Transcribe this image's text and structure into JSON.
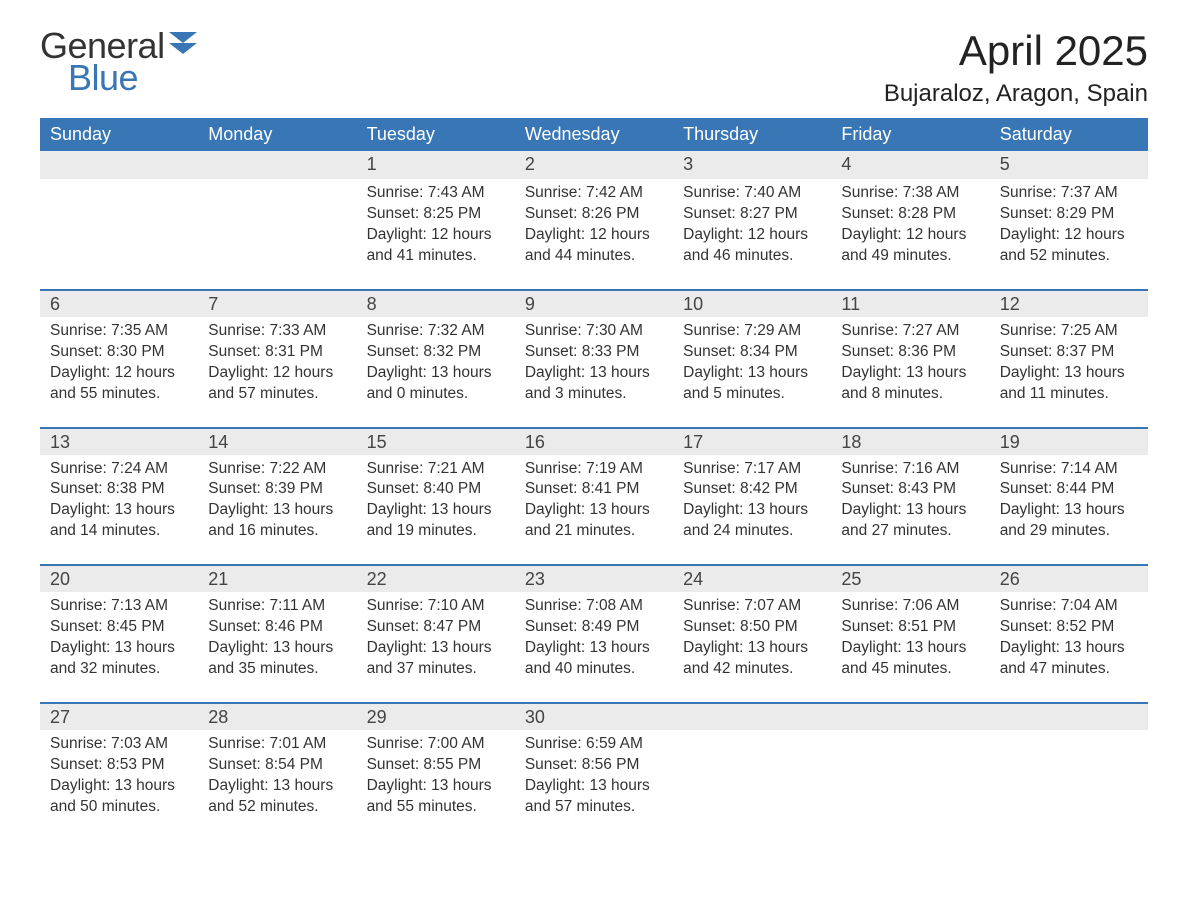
{
  "logo": {
    "text1": "General",
    "text2": "Blue",
    "color1": "#333333",
    "color2": "#3876b5"
  },
  "title": "April 2025",
  "location": "Bujaraloz, Aragon, Spain",
  "colors": {
    "header_bg": "#3876b5",
    "header_fg": "#ffffff",
    "daybar_bg": "#ebebeb",
    "daybar_border": "#3876b5",
    "body_bg": "#ffffff",
    "text": "#333333"
  },
  "typography": {
    "title_fontsize": 42,
    "location_fontsize": 24,
    "header_fontsize": 18,
    "daynum_fontsize": 18,
    "body_fontsize": 15.5
  },
  "weekdays": [
    "Sunday",
    "Monday",
    "Tuesday",
    "Wednesday",
    "Thursday",
    "Friday",
    "Saturday"
  ],
  "label_sunrise": "Sunrise",
  "label_sunset": "Sunset",
  "label_daylight": "Daylight",
  "weeks": [
    [
      {
        "empty": true
      },
      {
        "empty": true
      },
      {
        "day": 1,
        "sunrise": "7:43 AM",
        "sunset": "8:25 PM",
        "daylight": "12 hours and 41 minutes."
      },
      {
        "day": 2,
        "sunrise": "7:42 AM",
        "sunset": "8:26 PM",
        "daylight": "12 hours and 44 minutes."
      },
      {
        "day": 3,
        "sunrise": "7:40 AM",
        "sunset": "8:27 PM",
        "daylight": "12 hours and 46 minutes."
      },
      {
        "day": 4,
        "sunrise": "7:38 AM",
        "sunset": "8:28 PM",
        "daylight": "12 hours and 49 minutes."
      },
      {
        "day": 5,
        "sunrise": "7:37 AM",
        "sunset": "8:29 PM",
        "daylight": "12 hours and 52 minutes."
      }
    ],
    [
      {
        "day": 6,
        "sunrise": "7:35 AM",
        "sunset": "8:30 PM",
        "daylight": "12 hours and 55 minutes."
      },
      {
        "day": 7,
        "sunrise": "7:33 AM",
        "sunset": "8:31 PM",
        "daylight": "12 hours and 57 minutes."
      },
      {
        "day": 8,
        "sunrise": "7:32 AM",
        "sunset": "8:32 PM",
        "daylight": "13 hours and 0 minutes."
      },
      {
        "day": 9,
        "sunrise": "7:30 AM",
        "sunset": "8:33 PM",
        "daylight": "13 hours and 3 minutes."
      },
      {
        "day": 10,
        "sunrise": "7:29 AM",
        "sunset": "8:34 PM",
        "daylight": "13 hours and 5 minutes."
      },
      {
        "day": 11,
        "sunrise": "7:27 AM",
        "sunset": "8:36 PM",
        "daylight": "13 hours and 8 minutes."
      },
      {
        "day": 12,
        "sunrise": "7:25 AM",
        "sunset": "8:37 PM",
        "daylight": "13 hours and 11 minutes."
      }
    ],
    [
      {
        "day": 13,
        "sunrise": "7:24 AM",
        "sunset": "8:38 PM",
        "daylight": "13 hours and 14 minutes."
      },
      {
        "day": 14,
        "sunrise": "7:22 AM",
        "sunset": "8:39 PM",
        "daylight": "13 hours and 16 minutes."
      },
      {
        "day": 15,
        "sunrise": "7:21 AM",
        "sunset": "8:40 PM",
        "daylight": "13 hours and 19 minutes."
      },
      {
        "day": 16,
        "sunrise": "7:19 AM",
        "sunset": "8:41 PM",
        "daylight": "13 hours and 21 minutes."
      },
      {
        "day": 17,
        "sunrise": "7:17 AM",
        "sunset": "8:42 PM",
        "daylight": "13 hours and 24 minutes."
      },
      {
        "day": 18,
        "sunrise": "7:16 AM",
        "sunset": "8:43 PM",
        "daylight": "13 hours and 27 minutes."
      },
      {
        "day": 19,
        "sunrise": "7:14 AM",
        "sunset": "8:44 PM",
        "daylight": "13 hours and 29 minutes."
      }
    ],
    [
      {
        "day": 20,
        "sunrise": "7:13 AM",
        "sunset": "8:45 PM",
        "daylight": "13 hours and 32 minutes."
      },
      {
        "day": 21,
        "sunrise": "7:11 AM",
        "sunset": "8:46 PM",
        "daylight": "13 hours and 35 minutes."
      },
      {
        "day": 22,
        "sunrise": "7:10 AM",
        "sunset": "8:47 PM",
        "daylight": "13 hours and 37 minutes."
      },
      {
        "day": 23,
        "sunrise": "7:08 AM",
        "sunset": "8:49 PM",
        "daylight": "13 hours and 40 minutes."
      },
      {
        "day": 24,
        "sunrise": "7:07 AM",
        "sunset": "8:50 PM",
        "daylight": "13 hours and 42 minutes."
      },
      {
        "day": 25,
        "sunrise": "7:06 AM",
        "sunset": "8:51 PM",
        "daylight": "13 hours and 45 minutes."
      },
      {
        "day": 26,
        "sunrise": "7:04 AM",
        "sunset": "8:52 PM",
        "daylight": "13 hours and 47 minutes."
      }
    ],
    [
      {
        "day": 27,
        "sunrise": "7:03 AM",
        "sunset": "8:53 PM",
        "daylight": "13 hours and 50 minutes."
      },
      {
        "day": 28,
        "sunrise": "7:01 AM",
        "sunset": "8:54 PM",
        "daylight": "13 hours and 52 minutes."
      },
      {
        "day": 29,
        "sunrise": "7:00 AM",
        "sunset": "8:55 PM",
        "daylight": "13 hours and 55 minutes."
      },
      {
        "day": 30,
        "sunrise": "6:59 AM",
        "sunset": "8:56 PM",
        "daylight": "13 hours and 57 minutes."
      },
      {
        "empty": true
      },
      {
        "empty": true
      },
      {
        "empty": true
      }
    ]
  ]
}
